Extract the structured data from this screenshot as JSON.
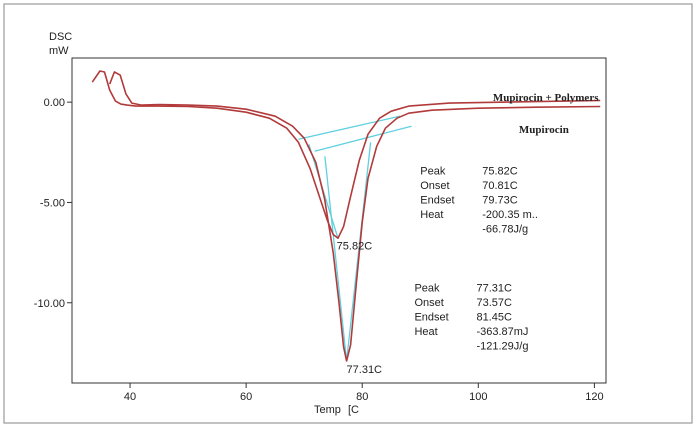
{
  "chart_data": {
    "type": "line",
    "title": "",
    "ylabel": "DSC",
    "yunit": "mW",
    "xlabel": "Temp",
    "xunit": "[C",
    "xlim": [
      30,
      122
    ],
    "ylim": [
      -14.0,
      2.2
    ],
    "x_ticks": [
      {
        "value": 40,
        "label": "40"
      },
      {
        "value": 60,
        "label": "60"
      },
      {
        "value": 80,
        "label": "80"
      },
      {
        "value": 100,
        "label": "100"
      },
      {
        "value": 120,
        "label": "120"
      }
    ],
    "y_ticks": [
      {
        "value": 0,
        "label": "0.00"
      },
      {
        "value": -5,
        "label": "-5.00"
      },
      {
        "value": -10,
        "label": "-10.00"
      }
    ],
    "grid": false,
    "colors": {
      "curve": "#b23a3a",
      "baseline": "#5fd0e0",
      "axis": "#333333",
      "frame": "#9a9a9a"
    },
    "series": [
      {
        "name": "Mupirocin + Polymers",
        "x": [
          33.5,
          34.8,
          35.6,
          36.5,
          37.5,
          38.4,
          39.5,
          41,
          45,
          50,
          55,
          60,
          64,
          67,
          69,
          71,
          72.5,
          74,
          75,
          75.82,
          76.8,
          78,
          79.5,
          81,
          83,
          85,
          88,
          95,
          105,
          115,
          121
        ],
        "y": [
          1.0,
          1.55,
          1.5,
          0.6,
          0.05,
          -0.1,
          -0.15,
          -0.2,
          -0.2,
          -0.22,
          -0.3,
          -0.5,
          -0.8,
          -1.3,
          -2.0,
          -3.3,
          -4.6,
          -5.9,
          -6.6,
          -6.78,
          -6.2,
          -4.7,
          -2.9,
          -1.6,
          -0.8,
          -0.45,
          -0.2,
          -0.05,
          0.0,
          0.05,
          0.08
        ]
      },
      {
        "name": "Mupirocin",
        "x": [
          36.5,
          37.3,
          38.3,
          39.3,
          40.3,
          42,
          45,
          50,
          55,
          60,
          65,
          68,
          70,
          72,
          73.5,
          75,
          76,
          76.8,
          77.31,
          78,
          79,
          80,
          81,
          82.5,
          84,
          86,
          88,
          92,
          100,
          110,
          121
        ],
        "y": [
          0.9,
          1.5,
          1.35,
          0.4,
          -0.05,
          -0.15,
          -0.12,
          -0.15,
          -0.2,
          -0.35,
          -0.7,
          -1.2,
          -1.8,
          -3.0,
          -4.8,
          -7.5,
          -10.0,
          -12.2,
          -12.9,
          -12.1,
          -9.0,
          -6.0,
          -3.8,
          -2.2,
          -1.3,
          -0.8,
          -0.55,
          -0.4,
          -0.3,
          -0.25,
          -0.22
        ]
      }
    ],
    "baselines": [
      {
        "x1": 69,
        "y1": -1.85,
        "x2": 86.5,
        "y2": -0.7
      },
      {
        "x1": 71.8,
        "y1": -2.45,
        "x2": 88.5,
        "y2": -1.2
      },
      {
        "x1": 70.81,
        "y1": -2.1,
        "x2": 75.82,
        "y2": -6.78
      },
      {
        "x1": 73.57,
        "y1": -2.7,
        "x2": 77.31,
        "y2": -12.9
      },
      {
        "x1": 77.31,
        "y1": -12.9,
        "x2": 81.45,
        "y2": -2.0
      }
    ],
    "annotations": {
      "curve_labels": [
        {
          "text": "Mupirocin + Polymers",
          "x": 102.5,
          "y": 0.05
        },
        {
          "text": "Mupirocin",
          "x": 107,
          "y": -1.55
        }
      ],
      "peak_labels": [
        {
          "text": "75.82C",
          "x": 75.6,
          "y": -7.35
        },
        {
          "text": "77.31C",
          "x": 77.3,
          "y": -13.5
        }
      ],
      "tables": [
        {
          "x": 90,
          "y": -3.6,
          "rows": [
            {
              "label": "Peak",
              "value": "75.82C"
            },
            {
              "label": "Onset",
              "value": "70.81C"
            },
            {
              "label": "Endset",
              "value": "79.73C"
            },
            {
              "label": "Heat",
              "value": "-200.35 m.."
            },
            {
              "label": "",
              "value": "-66.78J/g"
            }
          ]
        },
        {
          "x": 89,
          "y": -9.45,
          "rows": [
            {
              "label": "Peak",
              "value": "77.31C"
            },
            {
              "label": "Onset",
              "value": "73.57C"
            },
            {
              "label": "Endset",
              "value": "81.45C"
            },
            {
              "label": "Heat",
              "value": "-363.87mJ"
            },
            {
              "label": "",
              "value": "-121.29J/g"
            }
          ]
        }
      ]
    }
  }
}
